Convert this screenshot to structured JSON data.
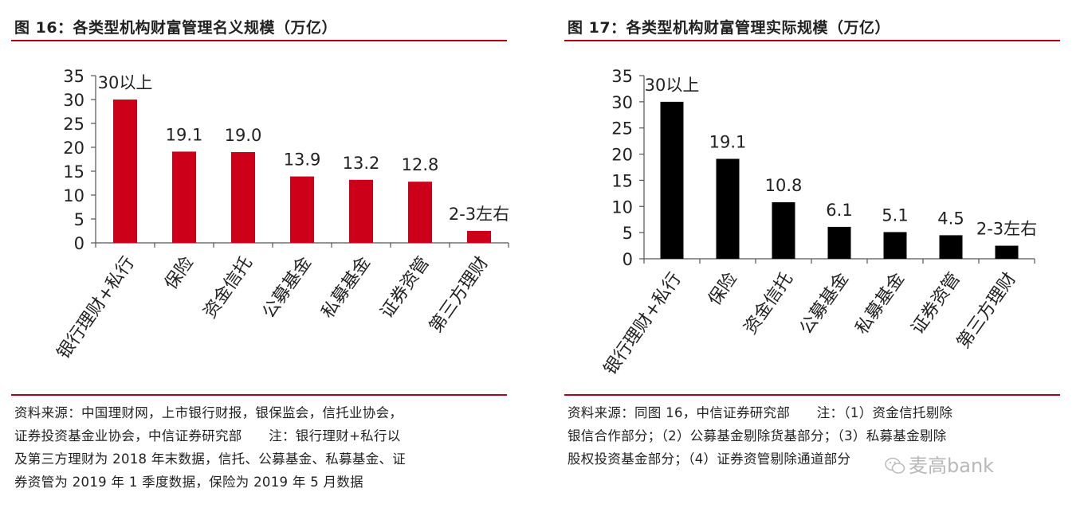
{
  "charts": [
    {
      "figure_title": "图 16：各类型机构财富管理名义规模（万亿）",
      "source_lines": [
        "资料来源：中国理财网，上市银行财报，银保监会，信托业协会，",
        "证券投资基金业协会，中信证券研究部　　注：银行理财+私行以",
        "及第三方理财为 2018 年末数据，信托、公募基金、私募基金、证",
        "券资管为 2019 年 1 季度数据，保险为 2019 年 5 月数据"
      ],
      "bar_color": "#cc0018"
    },
    {
      "figure_title": "图 17：各类型机构财富管理实际规模（万亿）",
      "source_lines": [
        "资料来源：同图 16，中信证券研究部　　注：（1）资金信托剔除",
        "银信合作部分；（2）公募基金剔除货基部分；（3）私募基金剔除",
        "股权投资基金部分；（4）证券资管剔除通道部分"
      ],
      "bar_color": "#000000"
    }
  ],
  "chart_data": [
    {
      "type": "bar",
      "title": "图 16：各类型机构财富管理名义规模（万亿）",
      "categories": [
        "银行理财+私行",
        "保险",
        "资金信托",
        "公募基金",
        "私募基金",
        "证券资管",
        "第三方理财"
      ],
      "values": [
        30,
        19.1,
        19.0,
        13.9,
        13.2,
        12.8,
        2.5
      ],
      "data_labels": [
        "30以上",
        "19.1",
        "19.0",
        "13.9",
        "13.2",
        "12.8",
        "2-3左右"
      ],
      "ylim": [
        0,
        35
      ],
      "yticks": [
        0,
        5,
        10,
        15,
        20,
        25,
        30,
        35
      ],
      "grid": false,
      "xlabel": "",
      "ylabel": ""
    },
    {
      "type": "bar",
      "title": "图 17：各类型机构财富管理实际规模（万亿）",
      "categories": [
        "银行理财+私行",
        "保险",
        "资金信托",
        "公募基金",
        "私募基金",
        "证券资管",
        "第三方理财"
      ],
      "values": [
        30,
        19.1,
        10.8,
        6.1,
        5.1,
        4.5,
        2.5
      ],
      "data_labels": [
        "30以上",
        "19.1",
        "10.8",
        "6.1",
        "5.1",
        "4.5",
        "2-3左右"
      ],
      "ylim": [
        0,
        35
      ],
      "yticks": [
        0,
        5,
        10,
        15,
        20,
        25,
        30,
        35
      ],
      "grid": false,
      "xlabel": "",
      "ylabel": ""
    }
  ],
  "watermark": {
    "text": "麦高bank",
    "icon": "wechat-icon"
  }
}
